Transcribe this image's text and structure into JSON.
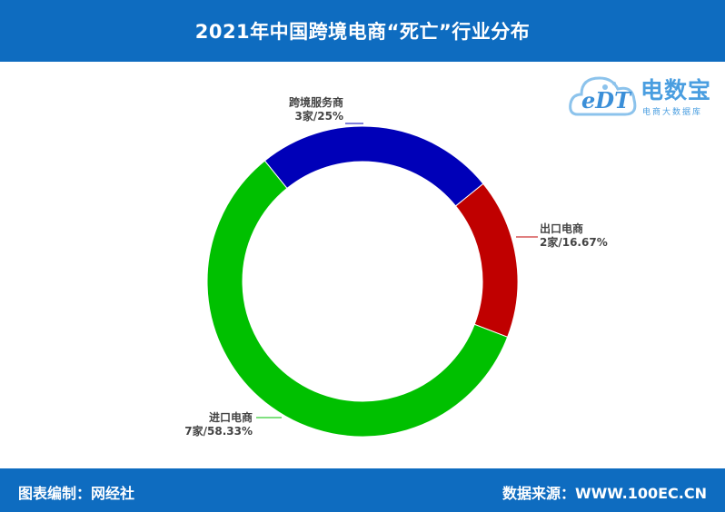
{
  "header": {
    "title": "2021年中国跨境电商“死亡”行业分布"
  },
  "footer": {
    "left": "图表编制：网经社",
    "right": "数据来源：WWW.100EC.CN"
  },
  "logo": {
    "name": "电数宝",
    "subtitle": "电商大数据库",
    "mark": "eDT"
  },
  "colors": {
    "header_bg": "#0e6cc0",
    "text_white": "#ffffff"
  },
  "chart_data": {
    "type": "pie",
    "donut": true,
    "slices": [
      {
        "label": "跨境服务商",
        "value_text": "3家/25%",
        "count": 3,
        "percent": 25,
        "color": "#0000b8"
      },
      {
        "label": "出口电商",
        "value_text": "2家/16.67%",
        "count": 2,
        "percent": 16.67,
        "color": "#c00000"
      },
      {
        "label": "进口电商",
        "value_text": "7家/58.33%",
        "count": 7,
        "percent": 58.33,
        "color": "#00c000"
      }
    ],
    "start_angle_deg": -39,
    "direction": "clockwise"
  }
}
